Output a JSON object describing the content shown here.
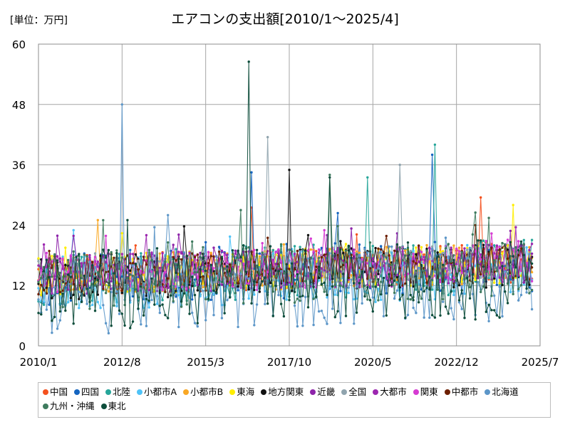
{
  "page": {
    "unit_label": "[単位：万円]",
    "title": "エアコンの支出額[2010/1～2025/4]"
  },
  "chart_data": {
    "type": "line",
    "title": "エアコンの支出額[2010/1～2025/4]",
    "ylabel": "[単位：万円]",
    "xlabel": "",
    "x_range": [
      "2010/1",
      "2025/4"
    ],
    "xlim": [
      "2010/1",
      "2025/7"
    ],
    "x_ticks": [
      "2010/1",
      "2012/8",
      "2015/3",
      "2017/10",
      "2020/5",
      "2022/12",
      "2025/7"
    ],
    "ylim": [
      0,
      60
    ],
    "y_ticks": [
      0,
      12,
      24,
      36,
      48,
      60
    ],
    "grid": true,
    "legend_position": "bottom",
    "series": [
      {
        "name": "中国",
        "color": "#f4511e",
        "peaks": [
          {
            "x": "2016/8",
            "y": 27.5
          },
          {
            "x": "2023/9",
            "y": 29.5
          }
        ],
        "band": [
          10,
          18
        ]
      },
      {
        "name": "四国",
        "color": "#1565c0",
        "peaks": [
          {
            "x": "2016/8",
            "y": 34.5
          },
          {
            "x": "2022/3",
            "y": 38
          }
        ],
        "band": [
          8,
          19
        ]
      },
      {
        "name": "北陸",
        "color": "#26a69a",
        "peaks": [
          {
            "x": "2022/4",
            "y": 40
          },
          {
            "x": "2020/3",
            "y": 33.5
          }
        ],
        "band": [
          8,
          19
        ]
      },
      {
        "name": "小都市A",
        "color": "#4fc3f7",
        "peaks": [
          {
            "x": "2011/2",
            "y": 23
          }
        ],
        "band": [
          7,
          18
        ]
      },
      {
        "name": "小都市B",
        "color": "#f9a825",
        "peaks": [
          {
            "x": "2011/11",
            "y": 25
          }
        ],
        "band": [
          10,
          18
        ]
      },
      {
        "name": "東海",
        "color": "#ffee00",
        "peaks": [
          {
            "x": "2024/9",
            "y": 28
          }
        ],
        "band": [
          10,
          18
        ]
      },
      {
        "name": "地方関東",
        "color": "#111111",
        "peaks": [
          {
            "x": "2017/10",
            "y": 35
          }
        ],
        "band": [
          9,
          18
        ]
      },
      {
        "name": "近畿",
        "color": "#8e24aa",
        "peaks": [
          {
            "x": "2018/12",
            "y": 22
          }
        ],
        "band": [
          10,
          18
        ]
      },
      {
        "name": "全国",
        "color": "#90a4ae",
        "peaks": [
          {
            "x": "2017/2",
            "y": 41.5
          },
          {
            "x": "2021/3",
            "y": 36
          }
        ],
        "band": [
          11,
          17
        ]
      },
      {
        "name": "大都市",
        "color": "#9c27b0",
        "peaks": [
          {
            "x": "2013/5",
            "y": 22
          }
        ],
        "band": [
          10,
          18
        ]
      },
      {
        "name": "関東",
        "color": "#d63bd2",
        "peaks": [
          {
            "x": "2018/11",
            "y": 23
          }
        ],
        "band": [
          10,
          18
        ]
      },
      {
        "name": "中都市",
        "color": "#6d1f00",
        "peaks": [
          {
            "x": "2023/7",
            "y": 24
          }
        ],
        "band": [
          10,
          18
        ]
      },
      {
        "name": "北海道",
        "color": "#5c96c8",
        "peaks": [
          {
            "x": "2012/8",
            "y": 48
          },
          {
            "x": "2014/1",
            "y": 26
          }
        ],
        "band": [
          2,
          18
        ]
      },
      {
        "name": "九州・沖縄",
        "color": "#3e7b5e",
        "peaks": [
          {
            "x": "2016/4",
            "y": 27
          },
          {
            "x": "2019/1",
            "y": 34
          }
        ],
        "band": [
          7,
          19
        ]
      },
      {
        "name": "東北",
        "color": "#0d4d3b",
        "peaks": [
          {
            "x": "2016/7",
            "y": 56.5
          },
          {
            "x": "2012/10",
            "y": 25
          },
          {
            "x": "2019/1",
            "y": 33.5
          }
        ],
        "band": [
          3,
          19
        ]
      }
    ]
  }
}
